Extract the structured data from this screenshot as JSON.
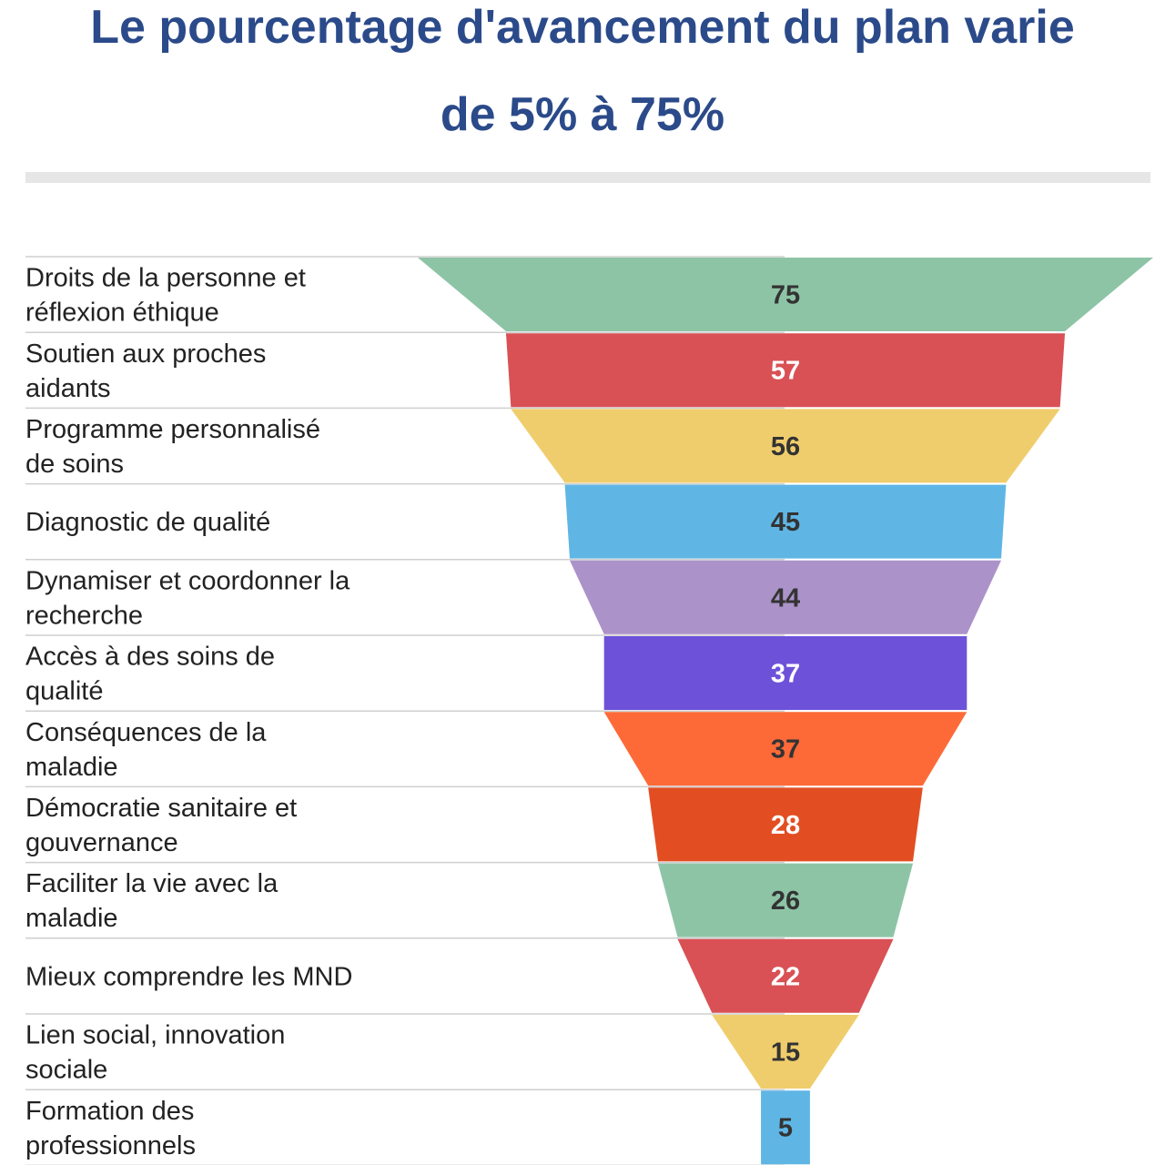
{
  "chart_data": {
    "type": "funnel",
    "title_lines": [
      "Le pourcentage d'avancement du plan varie",
      "de 5% à 75%"
    ],
    "categories": [
      [
        "Droits de la personne et",
        "réflexion éthique"
      ],
      [
        "Soutien aux proches",
        "aidants"
      ],
      [
        "Programme personnalisé",
        "de soins"
      ],
      [
        "Diagnostic de qualité"
      ],
      [
        "Dynamiser et coordonner la",
        "recherche"
      ],
      [
        "Accès à des soins de",
        "qualité"
      ],
      [
        "Conséquences de la",
        "maladie"
      ],
      [
        "Démocratie sanitaire et",
        "gouvernance"
      ],
      [
        "Faciliter la vie avec la",
        "maladie"
      ],
      [
        "Mieux comprendre les MND"
      ],
      [
        "Lien social, innovation",
        "sociale"
      ],
      [
        "Formation des",
        "professionnels"
      ]
    ],
    "values": [
      75,
      57,
      56,
      45,
      44,
      37,
      37,
      28,
      26,
      22,
      15,
      5
    ],
    "value_label_colors": [
      "#333333",
      "#ffffff",
      "#333333",
      "#333333",
      "#333333",
      "#ffffff",
      "#333333",
      "#ffffff",
      "#333333",
      "#ffffff",
      "#333333",
      "#333333"
    ],
    "colors": [
      "#8ec4a6",
      "#d95155",
      "#f0cd6c",
      "#5fb6e4",
      "#ab93c9",
      "#6d51d9",
      "#fd6a38",
      "#e24e21",
      "#8ec4a6",
      "#d95155",
      "#f0cd6c",
      "#5fb6e4"
    ],
    "grid": "horizontal separators",
    "legend": "none"
  }
}
